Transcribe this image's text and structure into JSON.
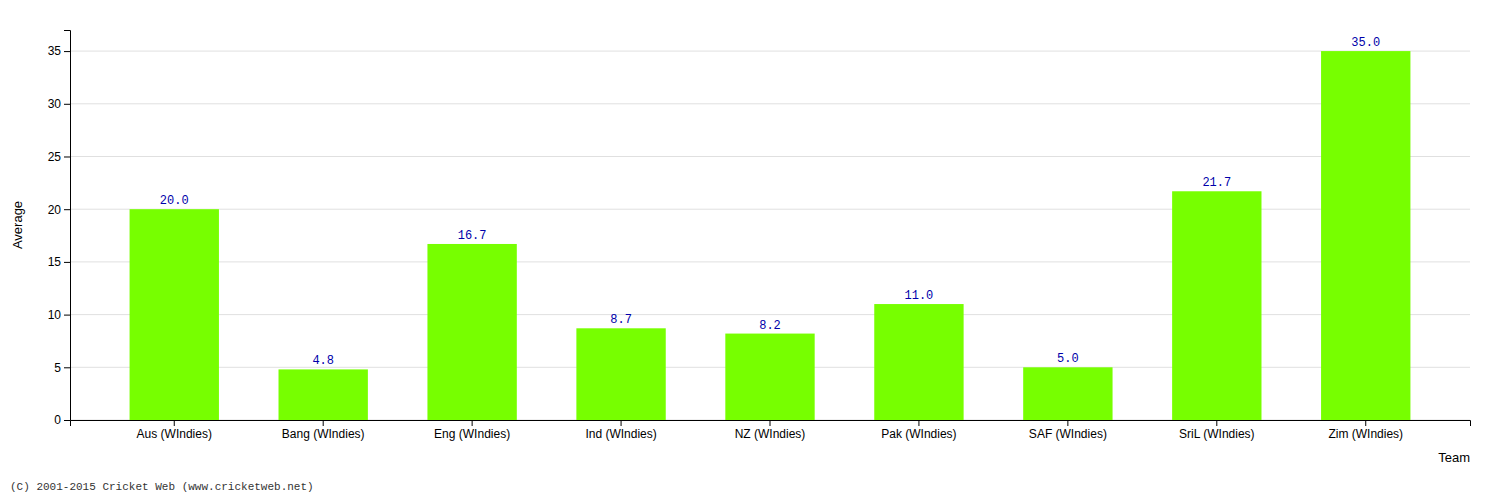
{
  "chart_data": {
    "type": "bar",
    "categories": [
      "Aus (WIndies)",
      "Bang (WIndies)",
      "Eng (WIndies)",
      "Ind (WIndies)",
      "NZ (WIndies)",
      "Pak (WIndies)",
      "SAF (WIndies)",
      "SriL (WIndies)",
      "Zim (WIndies)"
    ],
    "values": [
      20.0,
      4.8,
      16.7,
      8.7,
      8.2,
      11.0,
      5.0,
      21.7,
      35.0
    ],
    "value_labels": [
      "20.0",
      "4.8",
      "16.7",
      "8.7",
      "8.2",
      "11.0",
      "5.0",
      "21.7",
      "35.0"
    ],
    "color": "#77ff00",
    "xlabel": "Team",
    "ylabel": "Average",
    "ylim": [
      0,
      37
    ],
    "yticks": [
      0,
      5,
      10,
      15,
      20,
      25,
      30,
      35
    ],
    "grid": true,
    "data_labels": true,
    "annotations": [
      "(C) 2001-2015 Cricket Web (www.cricketweb.net)"
    ]
  }
}
